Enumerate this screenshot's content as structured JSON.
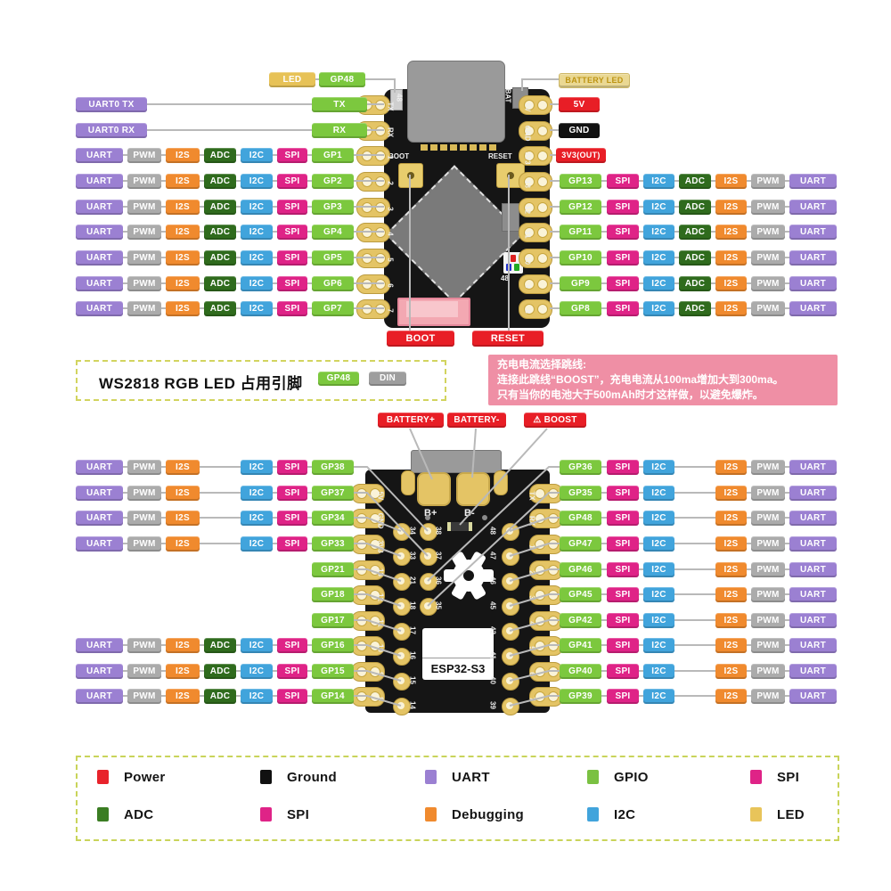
{
  "colors": {
    "uart": "#9b80d2",
    "pwm": "#ababab",
    "i2s": "#f08a2e",
    "adc": "#2f6b1d",
    "i2c": "#41a4dc",
    "spi": "#df2387",
    "gpio": "#7cc83e",
    "power": "#e81e26",
    "ground": "#111111",
    "led": "#e7c257",
    "battery_led_bg": "#ead893",
    "battery_led_text": "#bd9413",
    "note_pink": "#ef8fa5",
    "wire": "#b9b9b9"
  },
  "top": {
    "led_row": {
      "led": "LED",
      "pin": "GP48"
    },
    "uart0_tx": {
      "label": "UART0 TX",
      "pin": "TX"
    },
    "uart0_rx": {
      "label": "UART0 RX",
      "pin": "RX"
    },
    "left_rows": [
      {
        "pin": "GP1",
        "tags": [
          "UART",
          "PWM",
          "I2S",
          "ADC",
          "I2C",
          "SPI"
        ]
      },
      {
        "pin": "GP2",
        "tags": [
          "UART",
          "PWM",
          "I2S",
          "ADC",
          "I2C",
          "SPI"
        ]
      },
      {
        "pin": "GP3",
        "tags": [
          "UART",
          "PWM",
          "I2S",
          "ADC",
          "I2C",
          "SPI"
        ]
      },
      {
        "pin": "GP4",
        "tags": [
          "UART",
          "PWM",
          "I2S",
          "ADC",
          "I2C",
          "SPI"
        ]
      },
      {
        "pin": "GP5",
        "tags": [
          "UART",
          "PWM",
          "I2S",
          "ADC",
          "I2C",
          "SPI"
        ]
      },
      {
        "pin": "GP6",
        "tags": [
          "UART",
          "PWM",
          "I2S",
          "ADC",
          "I2C",
          "SPI"
        ]
      },
      {
        "pin": "GP7",
        "tags": [
          "UART",
          "PWM",
          "I2S",
          "ADC",
          "I2C",
          "SPI"
        ]
      }
    ],
    "battery_led": "BATTERY LED",
    "power_pins": [
      {
        "label": "5V",
        "type": "power"
      },
      {
        "label": "GND",
        "type": "ground"
      },
      {
        "label": "3V3(OUT)",
        "type": "power"
      }
    ],
    "right_rows": [
      {
        "pin": "GP13",
        "tags": [
          "SPI",
          "I2C",
          "ADC",
          "I2S",
          "PWM",
          "UART"
        ]
      },
      {
        "pin": "GP12",
        "tags": [
          "SPI",
          "I2C",
          "ADC",
          "I2S",
          "PWM",
          "UART"
        ]
      },
      {
        "pin": "GP11",
        "tags": [
          "SPI",
          "I2C",
          "ADC",
          "I2S",
          "PWM",
          "UART"
        ]
      },
      {
        "pin": "GP10",
        "tags": [
          "SPI",
          "I2C",
          "ADC",
          "I2S",
          "PWM",
          "UART"
        ]
      },
      {
        "pin": "GP9",
        "tags": [
          "SPI",
          "I2C",
          "ADC",
          "I2S",
          "PWM",
          "UART"
        ]
      },
      {
        "pin": "GP8",
        "tags": [
          "SPI",
          "I2C",
          "ADC",
          "I2S",
          "PWM",
          "UART"
        ]
      }
    ],
    "boot_label": "BOOT",
    "reset_label": "RESET",
    "board": {
      "left_silk": [
        "TX",
        "RX",
        "1",
        "2",
        "3",
        "4",
        "5",
        "6",
        "7"
      ],
      "right_silk": [
        "5V",
        "GND",
        "3V3",
        "13",
        "12",
        "11",
        "10",
        "9",
        "8"
      ],
      "bat_silk": "BAT",
      "led_silk": "48",
      "boot_silk": "BOOT",
      "reset_silk": "RESET",
      "rgb_silk": "48"
    }
  },
  "notes": {
    "ws2818": {
      "title": "WS2818 RGB LED 占用引脚",
      "pin": "GP48",
      "din": "DIN"
    },
    "charging": {
      "line1": "充电电流选择跳线:",
      "line2": "连接此跳线“BOOST”，充电电流从100ma增加大到300ma。",
      "line3": "只有当你的电池大于500mAh时才这样做，以避免爆炸。"
    }
  },
  "bottom": {
    "battery_plus": "BATTERY+",
    "battery_minus": "BATTERY-",
    "boost": "BOOST",
    "boost_warning": "⚠",
    "left_rows": [
      {
        "pin": "GP38",
        "tags": [
          "UART",
          "PWM",
          "I2S",
          "I2C",
          "SPI"
        ]
      },
      {
        "pin": "GP37",
        "tags": [
          "UART",
          "PWM",
          "I2S",
          "I2C",
          "SPI"
        ]
      },
      {
        "pin": "GP34",
        "tags": [
          "UART",
          "PWM",
          "I2S",
          "I2C",
          "SPI"
        ]
      },
      {
        "pin": "GP33",
        "tags": [
          "UART",
          "PWM",
          "I2S",
          "I2C",
          "SPI"
        ]
      },
      {
        "pin": "GP21",
        "tags": []
      },
      {
        "pin": "GP18",
        "tags": []
      },
      {
        "pin": "GP17",
        "tags": []
      },
      {
        "pin": "GP16",
        "tags": [
          "UART",
          "PWM",
          "I2S",
          "ADC",
          "I2C",
          "SPI"
        ]
      },
      {
        "pin": "GP15",
        "tags": [
          "UART",
          "PWM",
          "I2S",
          "ADC",
          "I2C",
          "SPI"
        ]
      },
      {
        "pin": "GP14",
        "tags": [
          "UART",
          "PWM",
          "I2S",
          "ADC",
          "I2C",
          "SPI"
        ]
      }
    ],
    "right_rows": [
      {
        "pin": "GP36",
        "tags": [
          "SPI",
          "I2C",
          "I2S",
          "PWM",
          "UART"
        ]
      },
      {
        "pin": "GP35",
        "tags": [
          "SPI",
          "I2C",
          "I2S",
          "PWM",
          "UART"
        ]
      },
      {
        "pin": "GP48",
        "tags": [
          "SPI",
          "I2C",
          "I2S",
          "PWM",
          "UART"
        ]
      },
      {
        "pin": "GP47",
        "tags": [
          "SPI",
          "I2C",
          "I2S",
          "PWM",
          "UART"
        ]
      },
      {
        "pin": "GP46",
        "tags": [
          "SPI",
          "I2C",
          "I2S",
          "PWM",
          "UART"
        ]
      },
      {
        "pin": "GP45",
        "tags": [
          "SPI",
          "I2C",
          "I2S",
          "PWM",
          "UART"
        ]
      },
      {
        "pin": "GP42",
        "tags": [
          "SPI",
          "I2C",
          "I2S",
          "PWM",
          "UART"
        ]
      },
      {
        "pin": "GP41",
        "tags": [
          "SPI",
          "I2C",
          "I2S",
          "PWM",
          "UART"
        ]
      },
      {
        "pin": "GP40",
        "tags": [
          "SPI",
          "I2C",
          "I2S",
          "PWM",
          "UART"
        ]
      },
      {
        "pin": "GP39",
        "tags": [
          "SPI",
          "I2C",
          "I2S",
          "PWM",
          "UART"
        ]
      }
    ],
    "board": {
      "chip": "ESP32-S3",
      "bplus": "B+",
      "bminus": "B-",
      "left_outer_silk": [
        "5V",
        "GND",
        "3V3",
        "13",
        "12",
        "11",
        "10",
        "9",
        "8"
      ],
      "right_outer_silk": [
        "TX",
        "RX",
        "1",
        "2",
        "3",
        "4",
        "5",
        "6",
        "7"
      ],
      "inner_left_a": [
        "34",
        "33",
        "21",
        "18",
        "17",
        "16",
        "15",
        "14"
      ],
      "inner_left_b": [
        "38",
        "37",
        "36",
        "35"
      ],
      "inner_right": [
        "48",
        "47",
        "46",
        "45",
        "42",
        "41",
        "40",
        "39"
      ]
    }
  },
  "legend": {
    "rows": [
      [
        {
          "label": "Power",
          "color": "#e8232b"
        },
        {
          "label": "Ground",
          "color": "#111111"
        },
        {
          "label": "UART",
          "color": "#9b80d2"
        },
        {
          "label": "GPIO",
          "color": "#7ac142"
        },
        {
          "label": "SPI",
          "color": "#df2387"
        }
      ],
      [
        {
          "label": "ADC",
          "color": "#3b7d23"
        },
        {
          "label": "SPI",
          "color": "#df2387"
        },
        {
          "label": "Debugging",
          "color": "#f08a2e"
        },
        {
          "label": "I2C",
          "color": "#41a4dc"
        },
        {
          "label": "LED",
          "color": "#e8c45a"
        }
      ]
    ]
  }
}
